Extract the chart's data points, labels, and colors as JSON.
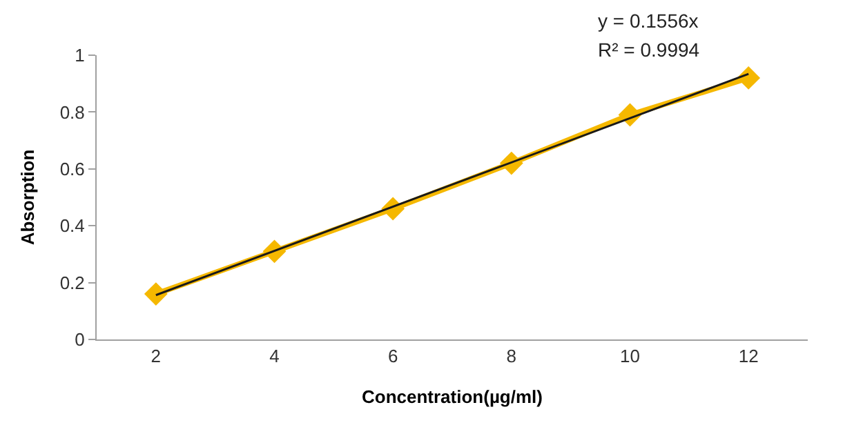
{
  "chart_data": {
    "type": "line",
    "xlabel": "Concentration(µg/ml)",
    "ylabel": "Absorption",
    "x": [
      2,
      4,
      6,
      8,
      10,
      12
    ],
    "series": [
      {
        "color": "#f5b800",
        "values": [
          0.16,
          0.31,
          0.46,
          0.62,
          0.79,
          0.92
        ],
        "marker": "diamond"
      },
      {
        "type": "line",
        "color": "#1a1a1a",
        "x": [
          2,
          12
        ],
        "values": [
          0.156,
          0.934
        ],
        "marker": "none"
      }
    ],
    "xlim": [
      1,
      13
    ],
    "xticks": [
      2,
      4,
      6,
      8,
      10,
      12
    ],
    "ylim": [
      0,
      1
    ],
    "yticks": [
      0,
      0.2,
      0.4,
      0.6,
      0.8,
      1
    ],
    "annotations": [
      "y = 0.1556x",
      "R² = 0.9994"
    ]
  }
}
